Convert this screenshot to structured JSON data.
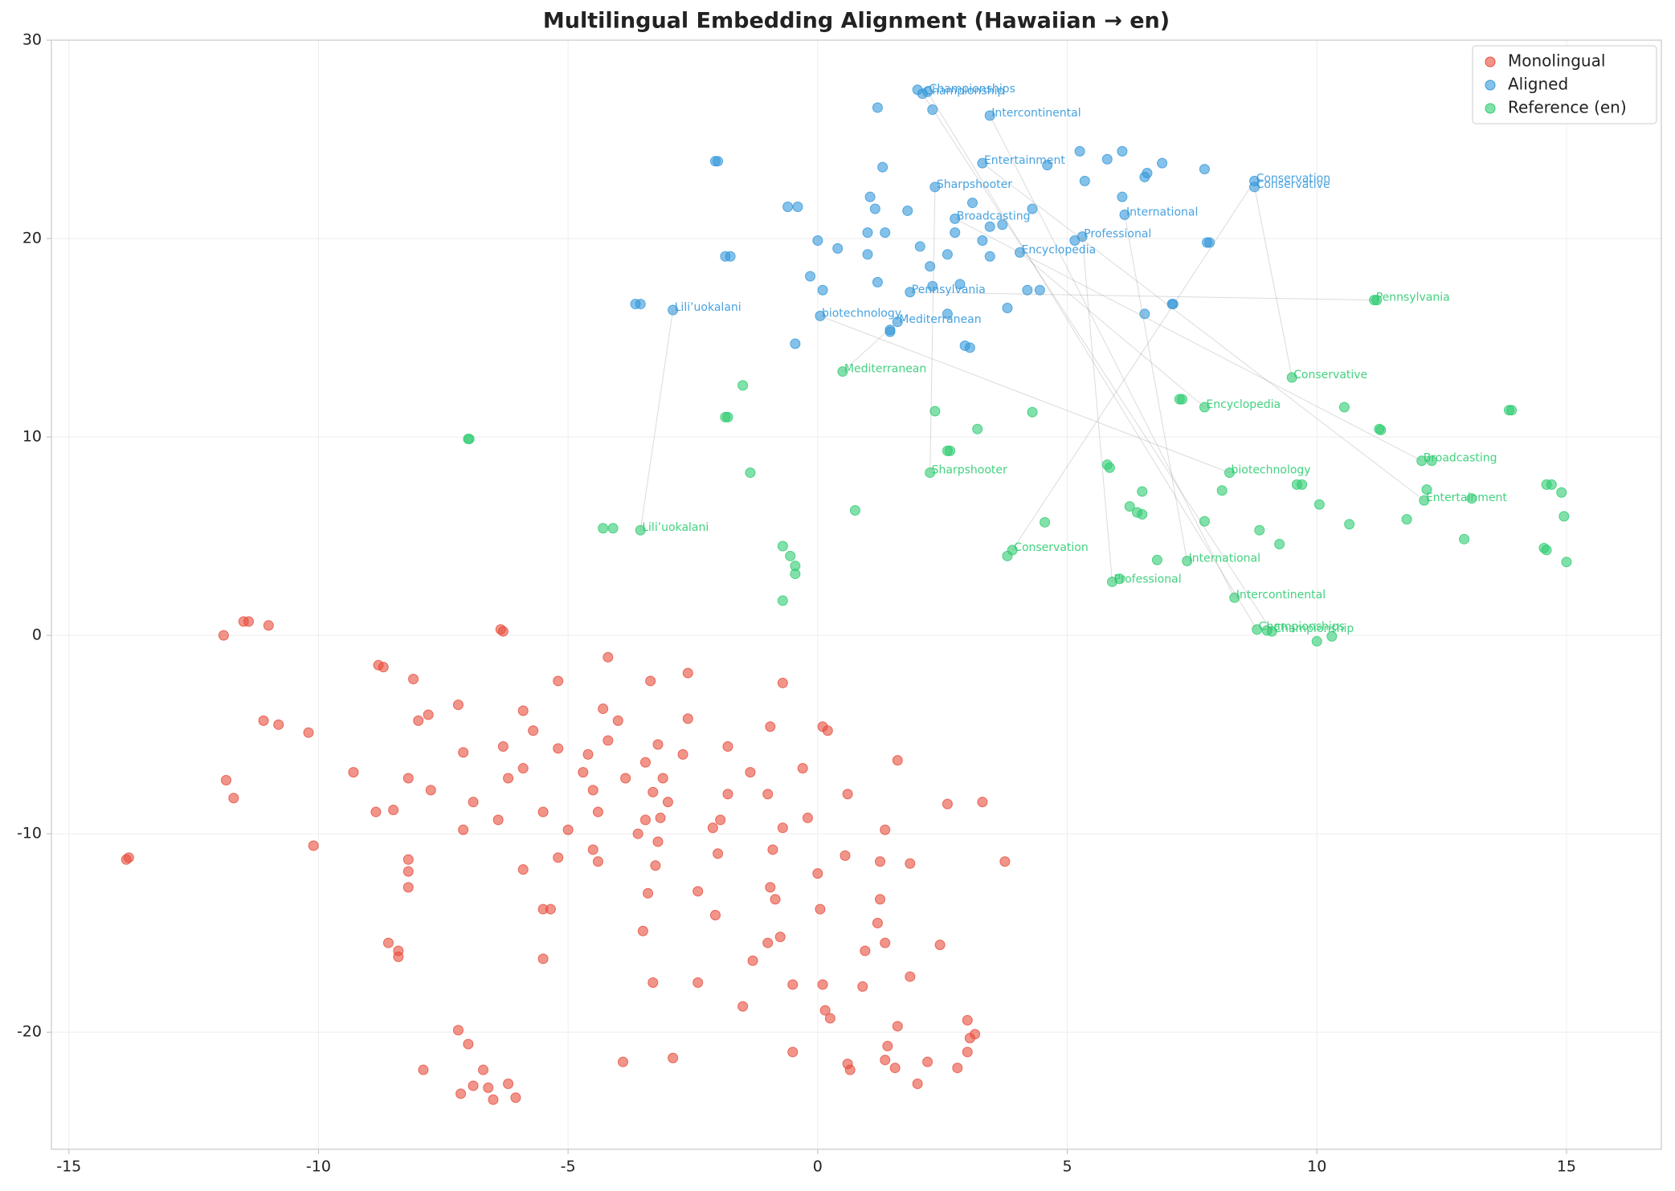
{
  "chart_data": {
    "type": "scatter",
    "title": "Multilingual Embedding Alignment (Hawaiian → en)",
    "xlim": [
      -15.35,
      16.9
    ],
    "ylim": [
      -25.9,
      30
    ],
    "xticks": [
      -15,
      -10,
      -5,
      0,
      5,
      10,
      15
    ],
    "yticks": [
      -20,
      -10,
      0,
      10,
      20,
      30
    ],
    "grid": true,
    "legend": "upper right",
    "series": [
      {
        "name": "Monolingual",
        "color": "#e74c3c",
        "x": [
          -11.9,
          -11.5,
          -11.4,
          -11.0,
          -6.35,
          -6.3,
          -13.85,
          -13.8,
          -11.85,
          -11.7,
          -11.1,
          -10.8,
          -10.2,
          -10.1,
          -9.3,
          -8.85,
          -8.8,
          -8.7,
          -8.5,
          -8.6,
          -8.4,
          -8.4,
          -8.1,
          -8.2,
          -8.2,
          -8.2,
          -8.2,
          -8.0,
          -7.8,
          -7.75,
          -7.9,
          -7.2,
          -7.1,
          -6.9,
          -7.1,
          -7.2,
          -7.0,
          -7.15,
          -6.9,
          -6.7,
          -6.6,
          -6.5,
          -6.2,
          -6.05,
          -6.3,
          -6.4,
          -6.2,
          -5.9,
          -5.9,
          -5.9,
          -5.7,
          -5.5,
          -5.5,
          -5.5,
          -5.35,
          -5.2,
          -5.2,
          -5.2,
          -5.0,
          -4.7,
          -4.6,
          -4.5,
          -4.5,
          -4.4,
          -4.4,
          -4.3,
          -4.2,
          -4.2,
          -4.0,
          -3.85,
          -3.9,
          -3.6,
          -3.45,
          -3.45,
          -3.5,
          -3.35,
          -3.4,
          -3.3,
          -3.2,
          -3.3,
          -3.2,
          -3.25,
          -3.15,
          -3.1,
          -3.0,
          -2.9,
          -2.7,
          -2.6,
          -2.6,
          -2.4,
          -2.4,
          -2.1,
          -2.05,
          -2.0,
          -1.95,
          -1.8,
          -1.8,
          -1.5,
          -1.35,
          -1.3,
          -0.95,
          -1.0,
          -0.95,
          -1.0,
          -0.9,
          -0.85,
          -0.75,
          -0.7,
          -0.7,
          -0.5,
          -0.5,
          -0.3,
          -0.2,
          0.0,
          0.05,
          0.1,
          0.2,
          0.1,
          0.15,
          0.25,
          0.6,
          0.55,
          0.6,
          0.65,
          0.95,
          0.9,
          1.6,
          1.6,
          1.55,
          1.2,
          1.25,
          1.25,
          1.35,
          1.35,
          1.35,
          1.4,
          1.85,
          1.85,
          2.0,
          2.2,
          2.45,
          2.6,
          2.8,
          3.0,
          3.05,
          3.15,
          3.0,
          3.3,
          3.75
        ],
        "values": [
          0.0,
          0.7,
          0.7,
          0.5,
          0.3,
          0.2,
          -11.3,
          -11.2,
          -7.3,
          -8.2,
          -4.3,
          -4.5,
          -4.9,
          -10.6,
          -6.9,
          -8.9,
          -1.5,
          -1.6,
          -8.8,
          -15.5,
          -15.9,
          -16.2,
          -2.2,
          -7.2,
          -11.3,
          -11.9,
          -12.7,
          -4.3,
          -4.0,
          -7.8,
          -21.9,
          -3.5,
          -5.9,
          -8.4,
          -9.8,
          -19.9,
          -20.6,
          -23.1,
          -22.7,
          -21.9,
          -22.8,
          -23.4,
          -22.6,
          -23.3,
          -5.6,
          -9.3,
          -7.2,
          -3.8,
          -6.7,
          -11.8,
          -4.8,
          -8.9,
          -16.3,
          -13.8,
          -13.8,
          -2.3,
          -5.7,
          -11.2,
          -9.8,
          -6.9,
          -6.0,
          -7.8,
          -10.8,
          -11.4,
          -8.9,
          -3.7,
          -5.3,
          -1.1,
          -4.3,
          -7.2,
          -21.5,
          -10.0,
          -6.4,
          -9.3,
          -14.9,
          -2.3,
          -13.0,
          -17.5,
          -5.5,
          -7.9,
          -10.4,
          -11.6,
          -9.2,
          -7.2,
          -8.4,
          -21.3,
          -6.0,
          -1.9,
          -4.2,
          -12.9,
          -17.5,
          -9.7,
          -14.1,
          -11.0,
          -9.3,
          -8.0,
          -5.6,
          -18.7,
          -6.9,
          -16.4,
          -4.6,
          -8.0,
          -12.7,
          -15.5,
          -10.8,
          -13.3,
          -15.2,
          -2.4,
          -9.7,
          -17.6,
          -21.0,
          -6.7,
          -9.2,
          -12.0,
          -13.8,
          -4.6,
          -4.8,
          -17.6,
          -18.9,
          -19.3,
          -8.0,
          -11.1,
          -21.6,
          -21.9,
          -15.9,
          -17.7,
          -6.3,
          -19.7,
          -21.8,
          -14.5,
          -13.3,
          -11.4,
          -15.5,
          -9.8,
          -21.4,
          -20.7,
          -17.2,
          -11.5,
          -22.6,
          -21.5,
          -15.6,
          -8.5,
          -21.8,
          -19.4,
          -20.3,
          -20.1,
          -21.0,
          -8.4,
          -11.4
        ]
      },
      {
        "name": "Aligned",
        "color": "#3498db",
        "x": [
          2.0,
          2.1,
          2.2,
          1.2,
          2.3,
          3.45,
          -2.05,
          -2.0,
          1.3,
          3.3,
          4.6,
          5.25,
          6.1,
          5.8,
          6.9,
          6.6,
          6.55,
          7.75,
          5.35,
          6.1,
          8.75,
          8.75,
          2.35,
          1.05,
          3.1,
          -0.6,
          -0.4,
          1.15,
          1.8,
          4.3,
          2.75,
          6.15,
          3.7,
          3.45,
          2.75,
          1.0,
          1.35,
          0.0,
          3.3,
          5.15,
          5.3,
          7.8,
          7.85,
          2.05,
          0.4,
          4.05,
          1.0,
          2.6,
          3.45,
          -1.85,
          -1.75,
          2.25,
          -0.15,
          0.1,
          1.2,
          2.85,
          2.3,
          1.85,
          4.2,
          4.45,
          7.1,
          7.12,
          -3.65,
          -3.55,
          -2.9,
          3.8,
          2.6,
          6.55,
          0.05,
          1.6,
          1.45,
          1.45,
          2.95,
          3.05,
          -0.45
        ],
        "values": [
          27.5,
          27.3,
          27.4,
          26.6,
          26.5,
          26.2,
          23.9,
          23.9,
          23.6,
          23.8,
          23.7,
          24.4,
          24.4,
          24.0,
          23.8,
          23.3,
          23.1,
          23.5,
          22.9,
          22.1,
          22.9,
          22.6,
          22.6,
          22.1,
          21.8,
          21.6,
          21.6,
          21.5,
          21.4,
          21.5,
          21.0,
          21.2,
          20.7,
          20.6,
          20.3,
          20.3,
          20.3,
          19.9,
          19.9,
          19.9,
          20.1,
          19.8,
          19.8,
          19.6,
          19.5,
          19.3,
          19.2,
          19.2,
          19.1,
          19.1,
          19.1,
          18.6,
          18.1,
          17.4,
          17.8,
          17.7,
          17.6,
          17.3,
          17.4,
          17.4,
          16.7,
          16.7,
          16.7,
          16.7,
          16.4,
          16.5,
          16.2,
          16.2,
          16.1,
          15.8,
          15.4,
          15.3,
          14.6,
          14.5,
          14.7
        ]
      },
      {
        "name": "Reference (en)",
        "color": "#2ecc71",
        "x": [
          11.15,
          11.2,
          0.5,
          -1.5,
          9.5,
          7.25,
          7.3,
          10.55,
          7.75,
          2.35,
          4.3,
          13.85,
          13.9,
          -1.85,
          -1.8,
          -7.0,
          -6.98,
          3.2,
          11.25,
          11.28,
          2.6,
          2.65,
          5.8,
          5.85,
          12.1,
          12.3,
          2.25,
          -1.35,
          8.25,
          9.6,
          9.7,
          14.6,
          14.7,
          8.1,
          6.5,
          12.2,
          13.1,
          14.9,
          12.15,
          10.05,
          6.25,
          6.4,
          6.5,
          0.75,
          14.95,
          11.8,
          4.55,
          7.75,
          10.65,
          -4.3,
          -4.1,
          -3.55,
          8.85,
          12.95,
          9.25,
          -0.7,
          3.9,
          14.55,
          14.6,
          -0.55,
          3.8,
          -0.45,
          6.8,
          7.4,
          15.0,
          -0.45,
          6.05,
          5.9,
          -0.7,
          8.35,
          8.8,
          9.0,
          9.1,
          10.3,
          10.0
        ],
        "values": [
          16.9,
          16.9,
          13.3,
          12.6,
          13.0,
          11.9,
          11.9,
          11.5,
          11.5,
          11.3,
          11.25,
          11.35,
          11.35,
          11.0,
          11.0,
          9.9,
          9.9,
          10.4,
          10.4,
          10.35,
          9.3,
          9.3,
          8.6,
          8.45,
          8.8,
          8.8,
          8.2,
          8.2,
          8.2,
          7.6,
          7.6,
          7.6,
          7.6,
          7.3,
          7.25,
          7.35,
          6.9,
          7.2,
          6.8,
          6.6,
          6.5,
          6.2,
          6.1,
          6.3,
          6.0,
          5.85,
          5.7,
          5.75,
          5.6,
          5.4,
          5.4,
          5.3,
          5.3,
          4.85,
          4.6,
          4.5,
          4.3,
          4.4,
          4.3,
          4.0,
          4.0,
          3.5,
          3.8,
          3.75,
          3.7,
          3.1,
          2.85,
          2.7,
          1.75,
          1.9,
          0.3,
          0.25,
          0.2,
          -0.05,
          -0.3
        ]
      }
    ],
    "annotations": [
      {
        "text": "Championships",
        "aligned": [
          2.2,
          27.4
        ],
        "reference": [
          8.8,
          0.3
        ]
      },
      {
        "text": "Championship",
        "aligned": [
          2.1,
          27.3
        ],
        "reference": [
          9.1,
          0.2
        ]
      },
      {
        "text": "Intercontinental",
        "aligned": [
          3.45,
          26.2
        ],
        "reference": [
          8.35,
          1.9
        ]
      },
      {
        "text": "Entertainment",
        "aligned": [
          3.3,
          23.8
        ],
        "reference": [
          12.15,
          6.8
        ]
      },
      {
        "text": "Sharpshooter",
        "aligned": [
          2.35,
          22.6
        ],
        "reference": [
          2.25,
          8.2
        ]
      },
      {
        "text": "Conservation",
        "aligned": [
          8.75,
          22.9
        ],
        "reference": [
          3.9,
          4.3
        ]
      },
      {
        "text": "Conservative",
        "aligned": [
          8.75,
          22.6
        ],
        "reference": [
          9.5,
          13.0
        ]
      },
      {
        "text": "Broadcasting",
        "aligned": [
          2.75,
          21.0
        ],
        "reference": [
          12.1,
          8.8
        ]
      },
      {
        "text": "International",
        "aligned": [
          6.15,
          21.2
        ],
        "reference": [
          7.4,
          3.75
        ]
      },
      {
        "text": "Professional",
        "aligned": [
          5.3,
          20.1
        ],
        "reference": [
          5.9,
          2.7
        ]
      },
      {
        "text": "Encyclopedia",
        "aligned": [
          4.05,
          19.3
        ],
        "reference": [
          7.75,
          11.5
        ]
      },
      {
        "text": "Pennsylvania",
        "aligned": [
          1.85,
          17.3
        ],
        "reference": [
          11.15,
          16.9
        ]
      },
      {
        "text": "biotechnology",
        "aligned": [
          0.05,
          16.1
        ],
        "reference": [
          8.25,
          8.2
        ]
      },
      {
        "text": "Mediterranean",
        "aligned": [
          1.6,
          15.8
        ],
        "reference": [
          0.5,
          13.3
        ]
      },
      {
        "text": "Lili’uokalani",
        "aligned": [
          -2.9,
          16.4
        ],
        "reference": [
          -3.55,
          5.3
        ]
      }
    ]
  }
}
